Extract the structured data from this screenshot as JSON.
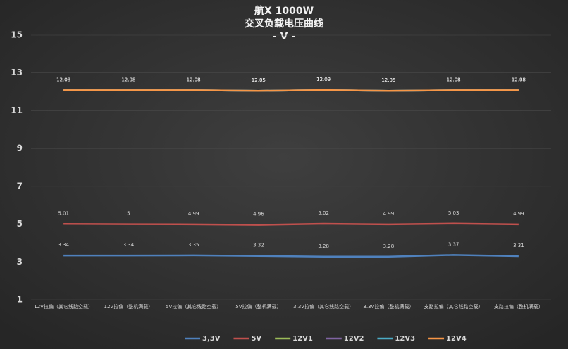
{
  "chart_data": {
    "type": "line",
    "title_lines": [
      "航X 1000W",
      "交叉负载电压曲线",
      "- V -"
    ],
    "categories": [
      "12V拉偏（其它线路空载）",
      "12V拉偏（整机满载）",
      "5V拉偏（其它线路空载）",
      "5V拉偏（整机满载）",
      "3.3V拉偏（其它线路空载）",
      "3.3V拉偏（整机满载）",
      "支路拉偏（其它线路空载）",
      "支路拉偏（整机满载）"
    ],
    "series": [
      {
        "name": "3,3V",
        "color": "#4f81bd",
        "values": [
          3.34,
          3.34,
          3.35,
          3.32,
          3.28,
          3.28,
          3.37,
          3.31
        ]
      },
      {
        "name": "5V",
        "color": "#c0504d",
        "values": [
          5.01,
          5,
          4.99,
          4.96,
          5.02,
          4.99,
          5.03,
          4.99
        ]
      },
      {
        "name": "12V1",
        "color": "#9bbb59",
        "values": [
          12.08,
          12.08,
          12.08,
          12.05,
          12.09,
          12.05,
          12.08,
          12.08
        ]
      },
      {
        "name": "12V2",
        "color": "#8064a2",
        "values": [
          12.08,
          12.08,
          12.08,
          12.05,
          12.09,
          12.05,
          12.08,
          12.08
        ]
      },
      {
        "name": "12V3",
        "color": "#4bacc6",
        "values": [
          12.08,
          12.08,
          12.08,
          12.05,
          12.09,
          12.05,
          12.08,
          12.08
        ]
      },
      {
        "name": "12V4",
        "color": "#f79646",
        "values": [
          12.08,
          12.08,
          12.08,
          12.05,
          12.09,
          12.05,
          12.08,
          12.08
        ]
      }
    ],
    "ylim": [
      1,
      15
    ],
    "yticks": [
      1,
      3,
      5,
      7,
      9,
      11,
      13,
      15
    ],
    "grid": true,
    "legend": "bottom"
  }
}
